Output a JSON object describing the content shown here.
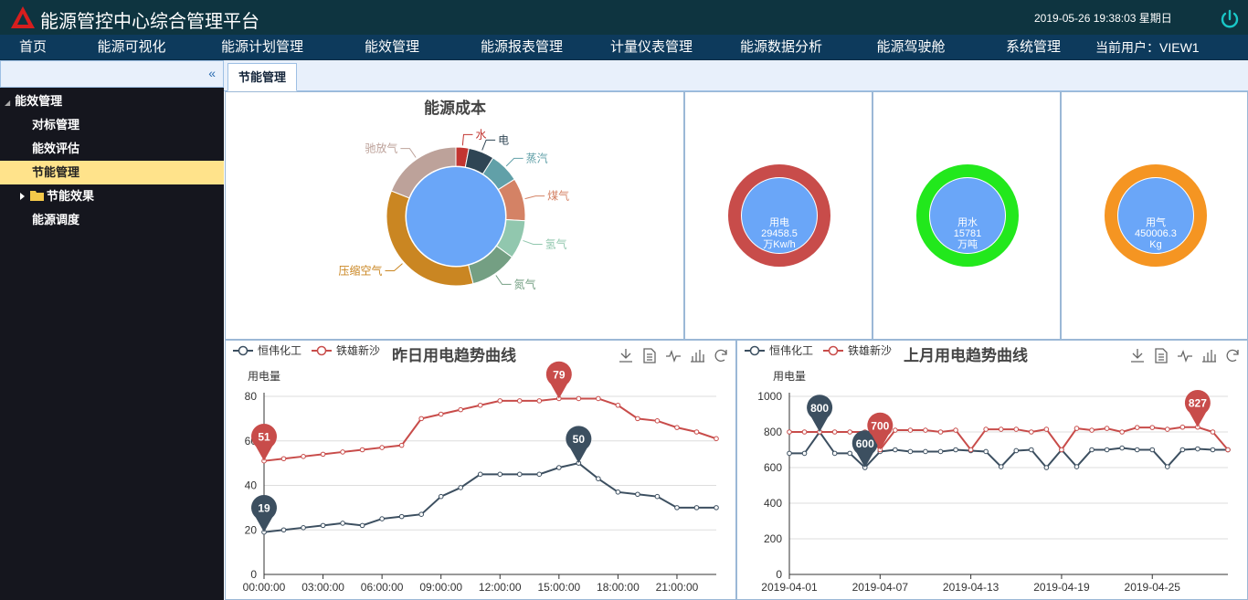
{
  "app": {
    "title": "能源管控中心综合管理平台",
    "datetime": "2019-05-26  19:38:03 星期日"
  },
  "nav": {
    "items": [
      "首页",
      "能源可视化",
      "能源计划管理",
      "能效管理",
      "能源报表管理",
      "计量仪表管理",
      "能源数据分析",
      "能源驾驶舱",
      "系统管理"
    ],
    "current_user": "当前用户：VIEW1"
  },
  "sidebar": {
    "collapse_glyph": "«",
    "items": [
      {
        "label": "能效管理",
        "level": 0,
        "prefix": "◢"
      },
      {
        "label": "对标管理",
        "level": 1
      },
      {
        "label": "能效评估",
        "level": 1
      },
      {
        "label": "节能管理",
        "level": 1,
        "active": true
      },
      {
        "label": "节能效果",
        "level": 1,
        "folder": true
      },
      {
        "label": "能源调度",
        "level": 1
      }
    ]
  },
  "tabs": [
    "节能管理"
  ],
  "energy_cost": {
    "title": "能源成本",
    "slices": [
      {
        "name": "水",
        "value": 3,
        "color": "#c23531"
      },
      {
        "name": "电",
        "value": 6,
        "color": "#2f4554"
      },
      {
        "name": "蒸汽",
        "value": 7,
        "color": "#61a0a8"
      },
      {
        "name": "煤气",
        "value": 10,
        "color": "#d48265"
      },
      {
        "name": "氢气",
        "value": 9,
        "color": "#91c7ae"
      },
      {
        "name": "氮气",
        "value": 11,
        "color": "#749f83"
      },
      {
        "name": "压缩空气",
        "value": 35,
        "color": "#ca8622"
      },
      {
        "name": "驰放气",
        "value": 19,
        "color": "#bda29a"
      }
    ]
  },
  "gauges": [
    {
      "name": "用电",
      "value": "29458.5",
      "unit": "万Kw/h",
      "color": "#c84c4a"
    },
    {
      "name": "用水",
      "value": "15781",
      "unit": "万吨",
      "color": "#22e81c"
    },
    {
      "name": "用气",
      "value": "450006.3",
      "unit": "Kg",
      "color": "#f59522"
    }
  ],
  "icons": {
    "tools": [
      "download-icon",
      "data-view-icon",
      "line-chart-icon",
      "bar-chart-icon",
      "restore-icon"
    ],
    "logo": "logo-icon",
    "power": "power-icon",
    "folder": "folder-icon"
  },
  "chart_data": [
    {
      "type": "line",
      "title": "昨日用电趋势曲线",
      "ylabel": "用电量",
      "ylim": [
        0,
        80
      ],
      "yticks": [
        0,
        20,
        40,
        60,
        80
      ],
      "x": [
        "00:00:00",
        "01:00:00",
        "02:00:00",
        "03:00:00",
        "04:00:00",
        "05:00:00",
        "06:00:00",
        "07:00:00",
        "08:00:00",
        "09:00:00",
        "10:00:00",
        "11:00:00",
        "12:00:00",
        "13:00:00",
        "14:00:00",
        "15:00:00",
        "16:00:00",
        "17:00:00",
        "18:00:00",
        "19:00:00",
        "20:00:00",
        "21:00:00",
        "22:00:00",
        "23:00:00"
      ],
      "xtick_labels": [
        "00:00:00",
        "03:00:00",
        "06:00:00",
        "09:00:00",
        "12:00:00",
        "15:00:00",
        "18:00:00",
        "21:00:00"
      ],
      "series": [
        {
          "name": "恒伟化工",
          "color": "#3c4f60",
          "values": [
            19,
            20,
            21,
            22,
            23,
            22,
            25,
            26,
            27,
            35,
            39,
            45,
            45,
            45,
            45,
            48,
            50,
            43,
            37,
            36,
            35,
            30,
            30,
            30
          ],
          "max": {
            "index": 16,
            "label": "50"
          },
          "min": {
            "index": 0,
            "label": "19"
          }
        },
        {
          "name": "铁雄新沙",
          "color": "#c84c4a",
          "values": [
            51,
            52,
            53,
            54,
            55,
            56,
            57,
            58,
            70,
            72,
            74,
            76,
            78,
            78,
            78,
            79,
            79,
            79,
            76,
            70,
            69,
            66,
            64,
            61
          ],
          "max": {
            "index": 15,
            "label": "79"
          },
          "min": {
            "index": 0,
            "label": "51"
          }
        }
      ]
    },
    {
      "type": "line",
      "title": "上月用电趋势曲线",
      "ylabel": "用电量",
      "ylim": [
        0,
        1000
      ],
      "yticks": [
        0,
        200,
        400,
        600,
        800,
        1000
      ],
      "x": [
        "2019-04-01",
        "2019-04-02",
        "2019-04-03",
        "2019-04-04",
        "2019-04-05",
        "2019-04-06",
        "2019-04-07",
        "2019-04-08",
        "2019-04-09",
        "2019-04-10",
        "2019-04-11",
        "2019-04-12",
        "2019-04-13",
        "2019-04-14",
        "2019-04-15",
        "2019-04-16",
        "2019-04-17",
        "2019-04-18",
        "2019-04-19",
        "2019-04-20",
        "2019-04-21",
        "2019-04-22",
        "2019-04-23",
        "2019-04-24",
        "2019-04-25",
        "2019-04-26",
        "2019-04-27",
        "2019-04-28",
        "2019-04-29",
        "2019-04-30"
      ],
      "xtick_labels": [
        "2019-04-01",
        "2019-04-07",
        "2019-04-13",
        "2019-04-19",
        "2019-04-25"
      ],
      "series": [
        {
          "name": "恒伟化工",
          "color": "#3c4f60",
          "values": [
            680,
            680,
            800,
            680,
            680,
            600,
            690,
            700,
            690,
            690,
            690,
            700,
            695,
            690,
            605,
            695,
            700,
            600,
            700,
            605,
            700,
            700,
            710,
            700,
            700,
            605,
            700,
            705,
            700,
            700
          ],
          "max": {
            "index": 2,
            "label": "800"
          },
          "min": {
            "index": 5,
            "label": "600"
          }
        },
        {
          "name": "铁雄新沙",
          "color": "#c84c4a",
          "values": [
            800,
            800,
            800,
            800,
            800,
            800,
            700,
            810,
            810,
            810,
            800,
            810,
            700,
            815,
            815,
            815,
            800,
            815,
            700,
            820,
            810,
            820,
            800,
            825,
            825,
            815,
            827,
            827,
            800,
            700
          ],
          "max": {
            "index": 27,
            "label": "827"
          },
          "min": {
            "index": 6,
            "label": "700"
          }
        }
      ]
    }
  ]
}
